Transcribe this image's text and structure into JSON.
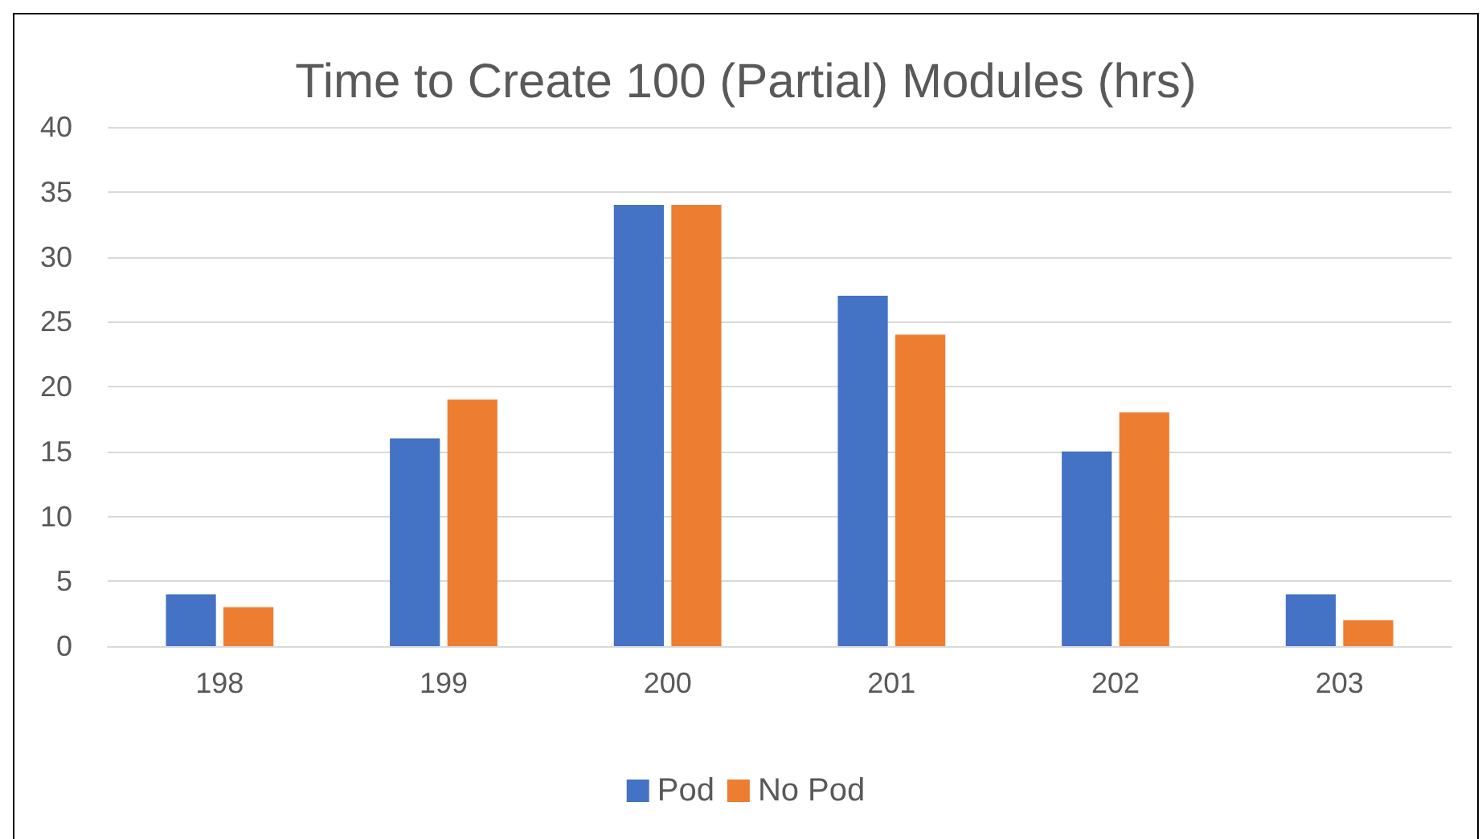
{
  "chart_data": {
    "type": "bar",
    "title": "Time to Create 100 (Partial) Modules (hrs)",
    "categories": [
      "198",
      "199",
      "200",
      "201",
      "202",
      "203"
    ],
    "series": [
      {
        "name": "Pod",
        "color": "#4472c4",
        "values": [
          4,
          16,
          34,
          27,
          15,
          4
        ]
      },
      {
        "name": "No Pod",
        "color": "#ed7d31",
        "values": [
          3,
          19,
          34,
          24,
          18,
          2
        ]
      }
    ],
    "ylim": [
      0,
      40
    ],
    "yticks": [
      0,
      5,
      10,
      15,
      20,
      25,
      30,
      35,
      40
    ],
    "grid": "y",
    "legend": "bottom"
  }
}
